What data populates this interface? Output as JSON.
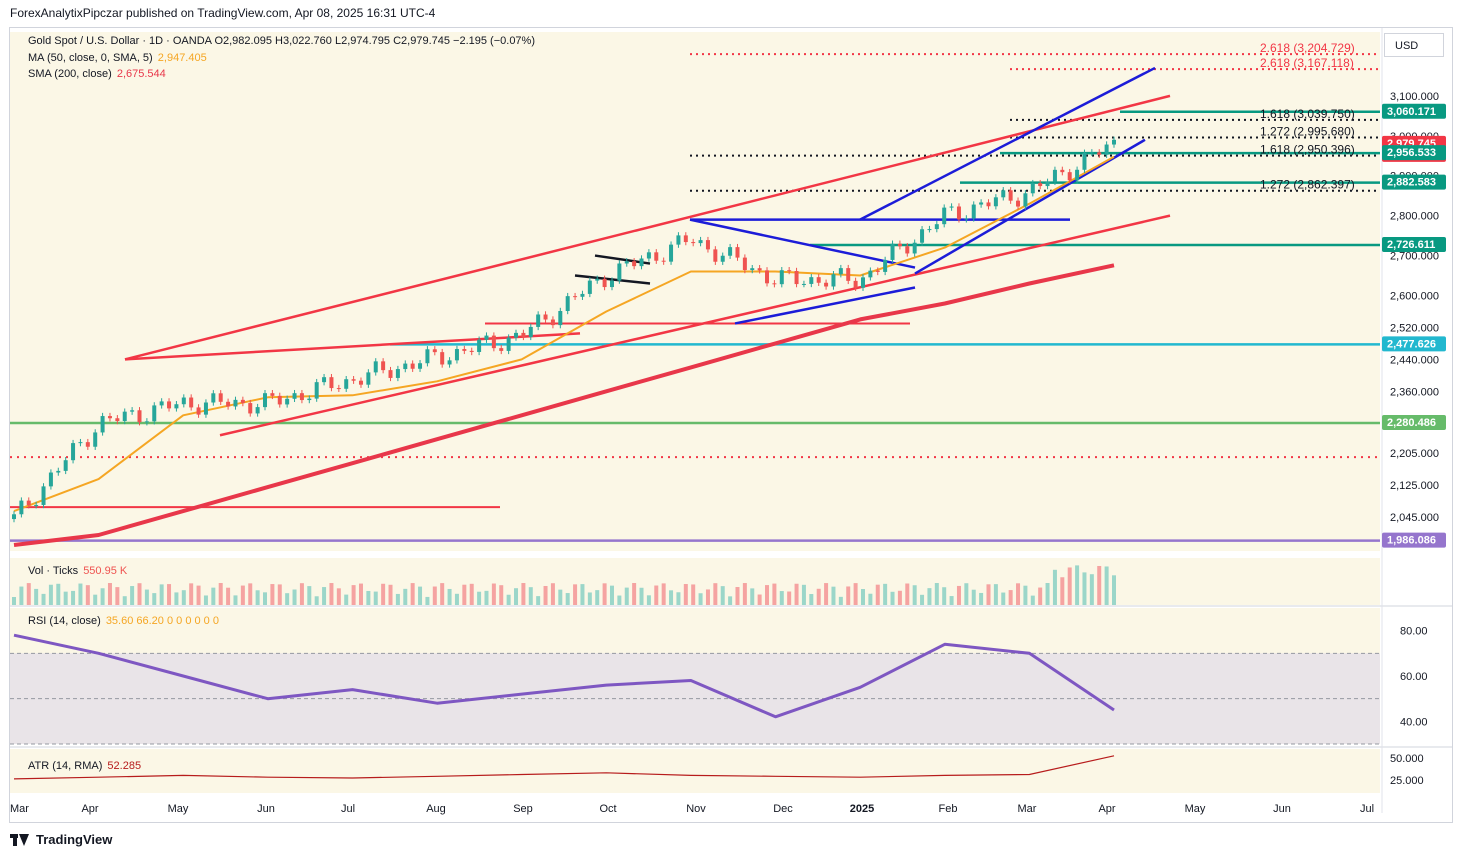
{
  "header": {
    "published": "ForexAnalytixPipczar published on TradingView.com, Apr 08, 2025 16:31 UTC-4"
  },
  "legend": {
    "title": "Gold Spot / U.S. Dollar · 1D · OANDA",
    "open": "O2,982.095",
    "high": "H3,022.760",
    "low": "L2,974.795",
    "close": "C2,979.745",
    "change": "−2.195 (−0.07%)",
    "ma_label": "MA (50, close, 0, SMA, 5)",
    "ma_value": "2,947.405",
    "sma_label": "SMA (200, close)",
    "sma_value": "2,675.544"
  },
  "currency": "USD",
  "colors": {
    "up": "#26a69a",
    "down": "#ef5350",
    "price_bg": "#fbf7e6",
    "sma200": "#e8374a",
    "ma50": "#f5a623",
    "channel_blue": "#1c1cd8",
    "rsi": "#7e57c2",
    "atr": "#b71c1c",
    "teal_label": "#089981",
    "cyan_line": "#22b8cf",
    "green_line": "#66bb6a",
    "purple_line": "#9575cd",
    "red_label": "#f23645"
  },
  "price_axis": [
    "3,100.000",
    "3,000.000",
    "2,900.000",
    "2,800.000",
    "2,700.000",
    "2,600.000",
    "2,520.000",
    "2,440.000",
    "2,360.000",
    "2,280.000",
    "2,205.000",
    "2,125.000",
    "2,045.000"
  ],
  "price_tags": [
    {
      "label": "3,060.171",
      "color": "#089981"
    },
    {
      "label": "2,979.745",
      "sub": "28:54",
      "color": "#f23645"
    },
    {
      "label": "2,956.533",
      "color": "#089981"
    },
    {
      "label": "2,882.583",
      "color": "#089981"
    },
    {
      "label": "2,726.611",
      "color": "#089981"
    },
    {
      "label": "2,477.626",
      "color": "#22b8cf"
    },
    {
      "label": "2,280.486",
      "color": "#66bb6a"
    },
    {
      "label": "1,986.086",
      "color": "#9575cd"
    }
  ],
  "fib_labels": [
    {
      "text": "2.618 (3,204.729)",
      "color": "#f23645"
    },
    {
      "text": "2.618 (3,167.118)",
      "color": "#f23645"
    },
    {
      "text": "1.618 (3,039.750)",
      "color": "#131722"
    },
    {
      "text": "1.272 (2,995.680)",
      "color": "#131722"
    },
    {
      "text": "1.618 (2,950.396)",
      "color": "#131722"
    },
    {
      "text": "1.272 (2,862.397)",
      "color": "#131722"
    }
  ],
  "volume": {
    "label": "Vol · Ticks",
    "value": "550.95 K"
  },
  "rsi": {
    "label": "RSI (14, close)",
    "values": "35.60  66.20  0  0  0  0  0  0",
    "axis": [
      "80.00",
      "60.00",
      "40.00"
    ]
  },
  "atr": {
    "label": "ATR (14, RMA)",
    "value": "52.285",
    "axis": [
      "50.000",
      "25.000"
    ]
  },
  "time_axis": [
    "Mar",
    "Apr",
    "May",
    "Jun",
    "Jul",
    "Aug",
    "Sep",
    "Oct",
    "Nov",
    "Dec",
    "2025",
    "Feb",
    "Mar",
    "Apr",
    "May",
    "Jun",
    "Jul"
  ],
  "brand": "TradingView",
  "chart_data": {
    "type": "candlestick",
    "title": "Gold Spot / U.S. Dollar · 1D · OANDA",
    "ylim": [
      1960,
      3260
    ],
    "x": [
      "Mar",
      "Apr",
      "May",
      "Jun",
      "Jul",
      "Aug",
      "Sep",
      "Oct",
      "Nov",
      "Dec",
      "2025",
      "Feb",
      "Mar",
      "Apr"
    ],
    "series": [
      {
        "name": "Gold Spot / U.S. Dollar",
        "values": [
          2040,
          2280,
          2330,
          2330,
          2390,
          2445,
          2500,
          2650,
          2740,
          2640,
          2640,
          2800,
          2860,
          2980
        ]
      },
      {
        "name": "MA (50, close, 0, SMA, 5)",
        "values": [
          2060,
          2140,
          2300,
          2345,
          2350,
          2385,
          2440,
          2560,
          2660,
          2660,
          2650,
          2720,
          2830,
          2947.405
        ]
      },
      {
        "name": "SMA (200, close)",
        "values": [
          1975,
          2000,
          2060,
          2120,
          2180,
          2240,
          2300,
          2360,
          2420,
          2480,
          2540,
          2580,
          2630,
          2675.544
        ]
      }
    ],
    "horizontal_levels": [
      3204.729,
      3167.118,
      3060.171,
      3039.75,
      2995.68,
      2956.533,
      2950.396,
      2882.583,
      2862.397,
      2726.611,
      2477.626,
      2280.486,
      1986.086
    ],
    "rsi": {
      "values": [
        78,
        70,
        60,
        50,
        54,
        48,
        52,
        56,
        58,
        42,
        55,
        74,
        70,
        45
      ],
      "ylim": [
        30,
        90
      ]
    },
    "atr": {
      "values": [
        26,
        28,
        30,
        28,
        27,
        29,
        31,
        33,
        30,
        29,
        28,
        30,
        31,
        52.285
      ]
    }
  }
}
